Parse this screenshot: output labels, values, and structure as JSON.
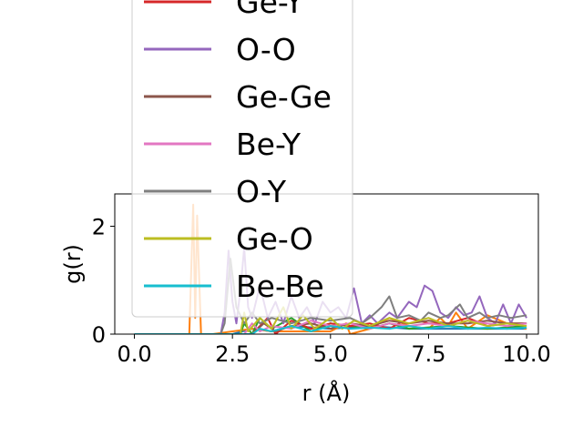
{
  "chart_data": {
    "type": "line",
    "xlabel": "r ($\\AA$)",
    "xlabel_display": "r (Å)",
    "ylabel": "g(r)",
    "xlim": [
      -0.5,
      10.3
    ],
    "ylim": [
      0,
      2.6
    ],
    "xticks": [
      "0.0",
      "2.5",
      "5.0",
      "7.5",
      "10.0"
    ],
    "xtick_values": [
      0,
      2.5,
      5,
      7.5,
      10
    ],
    "yticks": [
      "0",
      "2"
    ],
    "ytick_values": [
      0,
      2
    ],
    "legend_placement": "upper-center",
    "grid": false,
    "series": [
      {
        "name": "",
        "color": "#1f77b4",
        "points": [
          [
            0,
            0
          ],
          [
            1.5,
            0
          ],
          [
            1.6,
            0
          ],
          [
            2.0,
            0
          ],
          [
            2.5,
            0
          ],
          [
            3.0,
            0.1
          ],
          [
            3.5,
            0.05
          ],
          [
            4.0,
            0.15
          ],
          [
            5.0,
            0.1
          ],
          [
            6.0,
            0.15
          ],
          [
            7.0,
            0.1
          ],
          [
            8.0,
            0.1
          ],
          [
            9.0,
            0.1
          ],
          [
            10.0,
            0.1
          ]
        ]
      },
      {
        "name": "",
        "color": "#ff7f0e",
        "points": [
          [
            0,
            0
          ],
          [
            1.4,
            0
          ],
          [
            1.5,
            2.4
          ],
          [
            1.55,
            0.3
          ],
          [
            1.6,
            2.2
          ],
          [
            1.7,
            0
          ],
          [
            2.0,
            0
          ],
          [
            2.5,
            0.05
          ],
          [
            3.0,
            0.1
          ],
          [
            3.5,
            0.05
          ],
          [
            4.0,
            0.05
          ],
          [
            5.0,
            0.05
          ],
          [
            5.4,
            0.2
          ],
          [
            5.5,
            0
          ],
          [
            6.0,
            0.1
          ],
          [
            6.5,
            0.3
          ],
          [
            7.0,
            0.15
          ],
          [
            7.5,
            0.1
          ],
          [
            7.8,
            0.3
          ],
          [
            8.0,
            0.15
          ],
          [
            8.2,
            0.4
          ],
          [
            8.5,
            0.1
          ],
          [
            9.0,
            0.35
          ],
          [
            9.5,
            0.2
          ],
          [
            10.0,
            0.1
          ]
        ]
      },
      {
        "name": "",
        "color": "#2ca02c",
        "points": [
          [
            0,
            0
          ],
          [
            2.0,
            0
          ],
          [
            2.7,
            0
          ],
          [
            2.8,
            0.2
          ],
          [
            3.0,
            0
          ],
          [
            3.2,
            0.3
          ],
          [
            3.5,
            0.1
          ],
          [
            4.0,
            0.3
          ],
          [
            4.5,
            0.05
          ],
          [
            5.0,
            0.2
          ],
          [
            5.5,
            0.15
          ],
          [
            6.0,
            0.1
          ],
          [
            6.5,
            0.2
          ],
          [
            7.0,
            0.1
          ],
          [
            8.0,
            0.15
          ],
          [
            9.0,
            0.1
          ],
          [
            10.0,
            0.15
          ]
        ]
      },
      {
        "name": "Ge-Y",
        "color": "#d62728",
        "points": [
          [
            0,
            0
          ],
          [
            2.5,
            0
          ],
          [
            3.0,
            0
          ],
          [
            3.4,
            0.3
          ],
          [
            3.6,
            0
          ],
          [
            4.0,
            0.25
          ],
          [
            4.5,
            0.1
          ],
          [
            5.0,
            0.2
          ],
          [
            5.5,
            0.15
          ],
          [
            6.0,
            0.2
          ],
          [
            6.5,
            0.1
          ],
          [
            7.0,
            0.3
          ],
          [
            7.5,
            0.2
          ],
          [
            8.0,
            0.2
          ],
          [
            8.5,
            0.3
          ],
          [
            9.0,
            0.15
          ],
          [
            9.5,
            0.2
          ],
          [
            10.0,
            0.2
          ]
        ]
      },
      {
        "name": "O-O",
        "color": "#9467bd",
        "points": [
          [
            0,
            0
          ],
          [
            2.2,
            0
          ],
          [
            2.3,
            0.4
          ],
          [
            2.4,
            1.55
          ],
          [
            2.5,
            0.6
          ],
          [
            2.6,
            0.2
          ],
          [
            2.7,
            0.8
          ],
          [
            2.8,
            1.6
          ],
          [
            2.9,
            0.5
          ],
          [
            3.0,
            0.3
          ],
          [
            3.2,
            0.9
          ],
          [
            3.4,
            0.3
          ],
          [
            3.6,
            0.6
          ],
          [
            3.8,
            0.2
          ],
          [
            4.0,
            0.7
          ],
          [
            4.2,
            0.3
          ],
          [
            4.4,
            0.5
          ],
          [
            4.6,
            0.2
          ],
          [
            4.8,
            0.6
          ],
          [
            5.0,
            0.4
          ],
          [
            5.2,
            0.5
          ],
          [
            5.4,
            0.3
          ],
          [
            5.6,
            0.85
          ],
          [
            5.8,
            0.2
          ],
          [
            6.0,
            0.35
          ],
          [
            6.2,
            0.2
          ],
          [
            6.5,
            0.4
          ],
          [
            6.7,
            0.3
          ],
          [
            7.0,
            0.6
          ],
          [
            7.2,
            0.5
          ],
          [
            7.4,
            0.9
          ],
          [
            7.6,
            0.8
          ],
          [
            7.8,
            0.4
          ],
          [
            8.0,
            0.3
          ],
          [
            8.2,
            0.5
          ],
          [
            8.4,
            0.35
          ],
          [
            8.6,
            0.4
          ],
          [
            8.8,
            0.7
          ],
          [
            9.0,
            0.3
          ],
          [
            9.2,
            0.2
          ],
          [
            9.4,
            0.55
          ],
          [
            9.6,
            0.2
          ],
          [
            9.8,
            0.55
          ],
          [
            10.0,
            0.3
          ]
        ]
      },
      {
        "name": "Ge-Ge",
        "color": "#8c564b",
        "points": [
          [
            0,
            0
          ],
          [
            2.5,
            0
          ],
          [
            3.0,
            0
          ],
          [
            3.3,
            0.2
          ],
          [
            3.6,
            0.05
          ],
          [
            4.0,
            0.15
          ],
          [
            4.5,
            0.2
          ],
          [
            5.0,
            0.1
          ],
          [
            5.5,
            0.2
          ],
          [
            6.0,
            0.15
          ],
          [
            6.5,
            0.25
          ],
          [
            7.0,
            0.2
          ],
          [
            7.5,
            0.25
          ],
          [
            8.0,
            0.2
          ],
          [
            8.5,
            0.2
          ],
          [
            9.0,
            0.25
          ],
          [
            9.5,
            0.2
          ],
          [
            10.0,
            0.2
          ]
        ]
      },
      {
        "name": "Be-Y",
        "color": "#e377c2",
        "points": [
          [
            0,
            0
          ],
          [
            2.0,
            0
          ],
          [
            2.8,
            0
          ],
          [
            3.0,
            0.2
          ],
          [
            3.2,
            0.05
          ],
          [
            3.5,
            0.15
          ],
          [
            4.0,
            0.1
          ],
          [
            4.5,
            0.25
          ],
          [
            5.0,
            0.15
          ],
          [
            5.5,
            0.2
          ],
          [
            6.0,
            0.1
          ],
          [
            6.5,
            0.2
          ],
          [
            7.0,
            0.15
          ],
          [
            7.5,
            0.2
          ],
          [
            8.0,
            0.15
          ],
          [
            8.5,
            0.25
          ],
          [
            9.0,
            0.2
          ],
          [
            9.5,
            0.15
          ],
          [
            10.0,
            0.2
          ]
        ]
      },
      {
        "name": "O-Y",
        "color": "#7f7f7f",
        "points": [
          [
            0,
            0
          ],
          [
            2.0,
            0
          ],
          [
            2.2,
            0
          ],
          [
            2.3,
            0.2
          ],
          [
            2.45,
            1.4
          ],
          [
            2.6,
            0.5
          ],
          [
            2.8,
            0.2
          ],
          [
            3.0,
            0.4
          ],
          [
            3.2,
            0.2
          ],
          [
            3.5,
            0.3
          ],
          [
            4.0,
            0.2
          ],
          [
            4.5,
            0.3
          ],
          [
            5.0,
            0.25
          ],
          [
            5.5,
            0.3
          ],
          [
            5.8,
            0.2
          ],
          [
            6.0,
            0.3
          ],
          [
            6.3,
            0.5
          ],
          [
            6.5,
            0.7
          ],
          [
            6.7,
            0.3
          ],
          [
            7.0,
            0.35
          ],
          [
            7.3,
            0.25
          ],
          [
            7.5,
            0.4
          ],
          [
            7.8,
            0.3
          ],
          [
            8.0,
            0.35
          ],
          [
            8.3,
            0.55
          ],
          [
            8.5,
            0.3
          ],
          [
            8.8,
            0.4
          ],
          [
            9.0,
            0.3
          ],
          [
            9.3,
            0.35
          ],
          [
            9.6,
            0.3
          ],
          [
            10.0,
            0.35
          ]
        ]
      },
      {
        "name": "Ge-O",
        "color": "#bcbd22",
        "points": [
          [
            0,
            0
          ],
          [
            2.5,
            0
          ],
          [
            2.7,
            0
          ],
          [
            2.8,
            0.4
          ],
          [
            2.9,
            0.05
          ],
          [
            3.2,
            0.3
          ],
          [
            3.5,
            0.1
          ],
          [
            3.8,
            0.5
          ],
          [
            4.0,
            0.1
          ],
          [
            4.3,
            0.35
          ],
          [
            4.6,
            0.1
          ],
          [
            5.0,
            0.3
          ],
          [
            5.3,
            0.1
          ],
          [
            5.6,
            0.25
          ],
          [
            6.0,
            0.15
          ],
          [
            6.5,
            0.3
          ],
          [
            7.0,
            0.2
          ],
          [
            7.5,
            0.3
          ],
          [
            8.0,
            0.15
          ],
          [
            8.5,
            0.25
          ],
          [
            9.0,
            0.15
          ],
          [
            9.5,
            0.2
          ],
          [
            10.0,
            0.15
          ]
        ]
      },
      {
        "name": "Be-Be",
        "color": "#17becf",
        "points": [
          [
            0,
            0
          ],
          [
            2.5,
            0
          ],
          [
            3.0,
            0
          ],
          [
            3.2,
            0.1
          ],
          [
            3.5,
            0.05
          ],
          [
            4.0,
            0.15
          ],
          [
            4.5,
            0.05
          ],
          [
            5.0,
            0.15
          ],
          [
            5.5,
            0.1
          ],
          [
            6.0,
            0.12
          ],
          [
            6.5,
            0.1
          ],
          [
            7.0,
            0.15
          ],
          [
            7.5,
            0.1
          ],
          [
            8.0,
            0.15
          ],
          [
            8.5,
            0.1
          ],
          [
            9.0,
            0.12
          ],
          [
            9.5,
            0.1
          ],
          [
            10.0,
            0.12
          ]
        ]
      }
    ]
  }
}
